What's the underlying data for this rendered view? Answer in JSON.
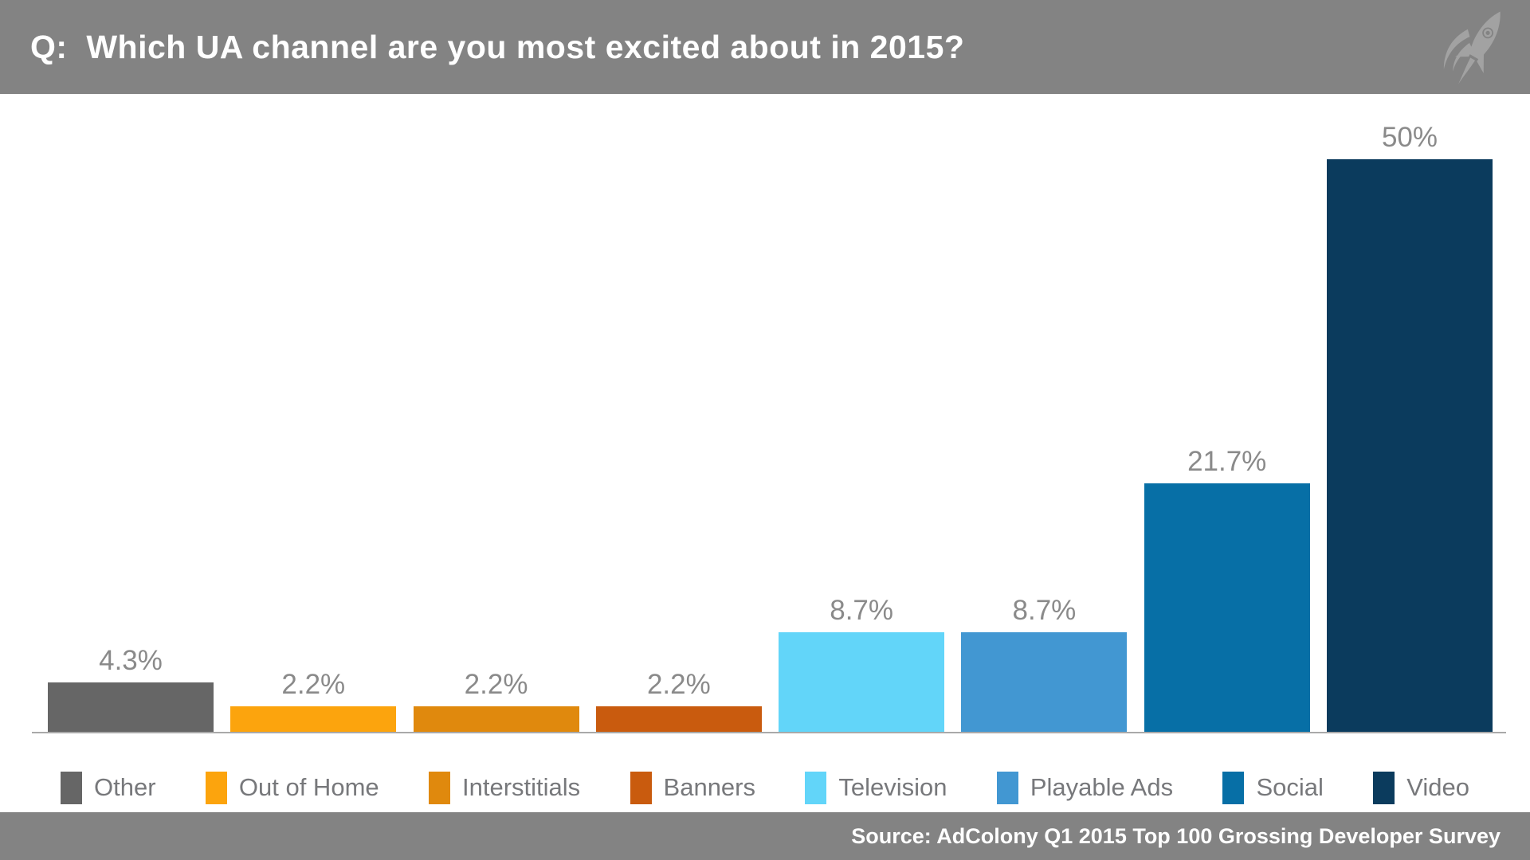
{
  "header": {
    "title": "Q:  Which UA channel are you most excited about in 2015?"
  },
  "footer": {
    "source": "Source: AdColony Q1 2015 Top 100 Grossing Developer Survey"
  },
  "colors": {
    "header_bg": "#838383",
    "footer_bg": "#838383",
    "title_text": "#ffffff",
    "axis_line": "#a9a9a9",
    "value_label": "#8a8a8a",
    "legend_label": "#77787b",
    "rocket": "#a2a2a2"
  },
  "chart_data": {
    "type": "bar",
    "title": "Q: Which UA channel are you most excited about in 2015?",
    "categories": [
      "Other",
      "Out of Home",
      "Interstitials",
      "Banners",
      "Television",
      "Playable Ads",
      "Social",
      "Video"
    ],
    "values": [
      4.3,
      2.2,
      2.2,
      2.2,
      8.7,
      8.7,
      21.7,
      50
    ],
    "value_labels": [
      "4.3%",
      "2.2%",
      "2.2%",
      "2.2%",
      "8.7%",
      "8.7%",
      "21.7%",
      "50%"
    ],
    "bar_colors": [
      "#666666",
      "#FCA40D",
      "#E0890D",
      "#C95B0E",
      "#62D5F9",
      "#4297D2",
      "#076FA6",
      "#0B3B5D"
    ],
    "xlabel": "",
    "ylabel": "",
    "ylim": [
      0,
      55
    ],
    "grid": false,
    "legend_position": "bottom",
    "source": "Source: AdColony Q1 2015 Top 100 Grossing Developer Survey"
  }
}
